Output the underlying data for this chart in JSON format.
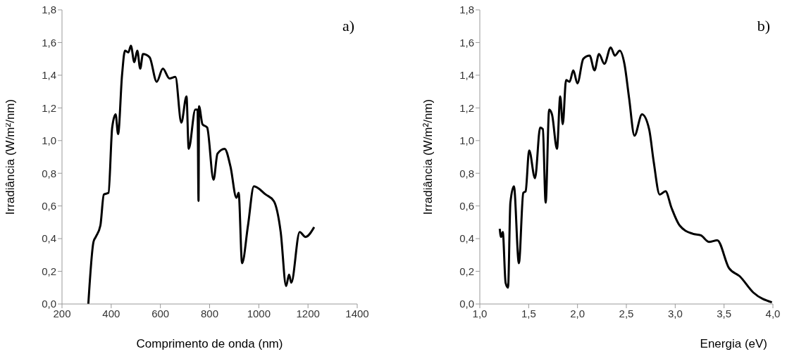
{
  "chart_data": [
    {
      "type": "line",
      "xlabel": "Comprimento de onda (nm)",
      "ylabel": "Irradiância (W/m²/nm)",
      "annotations": [
        "a)"
      ],
      "grid": false,
      "legend": false,
      "marker": "none",
      "line_style": "solid",
      "xlim": [
        200,
        1400
      ],
      "xticks": [
        200,
        400,
        600,
        800,
        1000,
        1200,
        1400
      ],
      "ylim": [
        0,
        1.8
      ],
      "yticks": [
        {
          "value": 0,
          "label": "0,0"
        },
        {
          "value": 0.2,
          "label": "0,2"
        },
        {
          "value": 0.4,
          "label": "0,4"
        },
        {
          "value": 0.6,
          "label": "0,6"
        },
        {
          "value": 0.8,
          "label": "0,8"
        },
        {
          "value": 1,
          "label": "1,0"
        },
        {
          "value": 1.2,
          "label": "1,2"
        },
        {
          "value": 1.4,
          "label": "1,4"
        },
        {
          "value": 1.6,
          "label": "1,6"
        },
        {
          "value": 1.8,
          "label": "1,8"
        }
      ],
      "series": [
        {
          "color": "#000000",
          "x": [
            307,
            328,
            337,
            356,
            370,
            389,
            404,
            418,
            428,
            444,
            456,
            470,
            480,
            494,
            506,
            518,
            529,
            556,
            585,
            610,
            637,
            661,
            685,
            706,
            715,
            742,
            751,
            755,
            757,
            771,
            790,
            816,
            832,
            861,
            885,
            909,
            918,
            932,
            956,
            980,
            1028,
            1061,
            1089,
            1111,
            1123,
            1132,
            1166,
            1190,
            1225
          ],
          "values": [
            0.0,
            0.38,
            0.41,
            0.48,
            0.67,
            0.68,
            1.08,
            1.16,
            1.04,
            1.4,
            1.55,
            1.54,
            1.58,
            1.48,
            1.55,
            1.44,
            1.53,
            1.51,
            1.36,
            1.44,
            1.38,
            1.39,
            1.11,
            1.27,
            0.95,
            1.19,
            1.19,
            0.63,
            1.21,
            1.1,
            1.08,
            0.76,
            0.92,
            0.95,
            0.84,
            0.65,
            0.68,
            0.25,
            0.48,
            0.72,
            0.67,
            0.63,
            0.44,
            0.11,
            0.18,
            0.13,
            0.44,
            0.41,
            0.47
          ]
        }
      ]
    },
    {
      "type": "line",
      "xlabel": "Energia (eV)",
      "ylabel": "Irradiância (W/m²/nm)",
      "annotations": [
        "b)"
      ],
      "grid": false,
      "legend": false,
      "marker": "none",
      "line_style": "solid",
      "xlim": [
        1,
        4
      ],
      "xticks": [
        {
          "value": 1,
          "label": "1,0"
        },
        {
          "value": 1.5,
          "label": "1,5"
        },
        {
          "value": 2,
          "label": "2,0"
        },
        {
          "value": 2.5,
          "label": "2,5"
        },
        {
          "value": 3,
          "label": "3,0"
        },
        {
          "value": 3.5,
          "label": "3,5"
        },
        {
          "value": 4,
          "label": "4,0"
        }
      ],
      "ylim": [
        0,
        1.8
      ],
      "yticks": [
        {
          "value": 0,
          "label": "0,0"
        },
        {
          "value": 0.2,
          "label": "0,2"
        },
        {
          "value": 0.4,
          "label": "0,4"
        },
        {
          "value": 0.6,
          "label": "0,6"
        },
        {
          "value": 0.8,
          "label": "0,8"
        },
        {
          "value": 1,
          "label": "1,0"
        },
        {
          "value": 1.2,
          "label": "1,2"
        },
        {
          "value": 1.4,
          "label": "1,4"
        },
        {
          "value": 1.6,
          "label": "1,6"
        },
        {
          "value": 1.8,
          "label": "1,8"
        }
      ],
      "series": [
        {
          "color": "#000000",
          "x": [
            1.204,
            1.217,
            1.235,
            1.264,
            1.289,
            1.313,
            1.349,
            1.4,
            1.445,
            1.469,
            1.505,
            1.565,
            1.618,
            1.645,
            1.674,
            1.71,
            1.739,
            1.79,
            1.823,
            1.849,
            1.883,
            1.919,
            1.957,
            1.999,
            2.059,
            2.124,
            2.174,
            2.22,
            2.275,
            2.34,
            2.383,
            2.432,
            2.48,
            2.528,
            2.583,
            2.66,
            2.733,
            2.78,
            2.841,
            2.901,
            2.961,
            3.046,
            3.178,
            3.262,
            3.347,
            3.43,
            3.55,
            3.66,
            3.8,
            3.99
          ],
          "values": [
            0.46,
            0.41,
            0.44,
            0.13,
            0.1,
            0.62,
            0.72,
            0.25,
            0.68,
            0.69,
            0.94,
            0.77,
            1.08,
            1.07,
            0.62,
            1.19,
            1.16,
            0.95,
            1.27,
            1.1,
            1.37,
            1.36,
            1.43,
            1.35,
            1.5,
            1.52,
            1.43,
            1.53,
            1.47,
            1.57,
            1.52,
            1.55,
            1.47,
            1.26,
            1.03,
            1.16,
            1.07,
            0.87,
            0.67,
            0.69,
            0.59,
            0.48,
            0.43,
            0.42,
            0.38,
            0.39,
            0.22,
            0.17,
            0.07,
            0.01
          ]
        }
      ]
    }
  ]
}
